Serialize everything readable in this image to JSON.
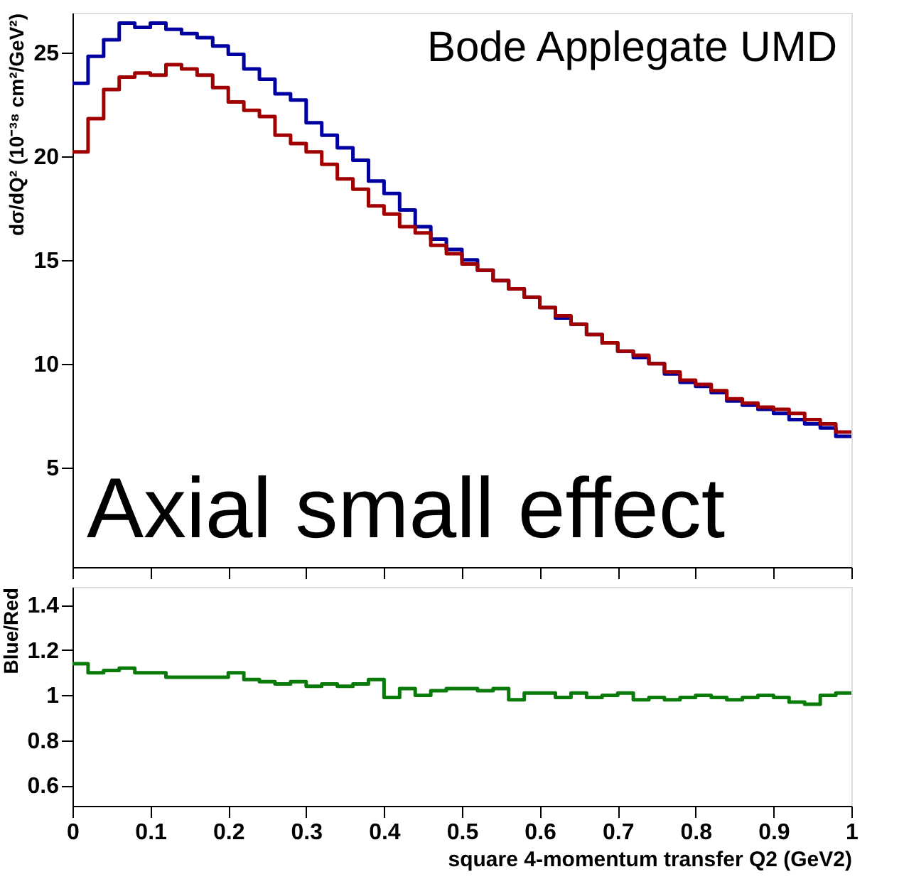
{
  "chart_data": [
    {
      "type": "histogram",
      "ylabel": "dσ/dQ² (10⁻³⁸ cm²/GeV²)",
      "annotations": [
        "Bode Applegate UMD",
        "Axial small effect"
      ],
      "bins": [
        0,
        0.02,
        0.04,
        0.06,
        0.08,
        0.1,
        0.12,
        0.14,
        0.16,
        0.18,
        0.2,
        0.22,
        0.24,
        0.26,
        0.28,
        0.3,
        0.32,
        0.34,
        0.36,
        0.38,
        0.4,
        0.42,
        0.44,
        0.46,
        0.48,
        0.5,
        0.52,
        0.54,
        0.56,
        0.58,
        0.6,
        0.62,
        0.64,
        0.66,
        0.68,
        0.7,
        0.72,
        0.74,
        0.76,
        0.78,
        0.8,
        0.82,
        0.84,
        0.86,
        0.88,
        0.9,
        0.92,
        0.94,
        0.96,
        0.98,
        1
      ],
      "series": [
        {
          "color": "#0000a0",
          "values": [
            23.5,
            24.8,
            25.6,
            26.4,
            26.2,
            26.4,
            26.1,
            25.9,
            25.7,
            25.3,
            24.9,
            24.2,
            23.7,
            23.0,
            22.7,
            21.6,
            21.0,
            20.4,
            19.8,
            18.8,
            18.2,
            17.4,
            16.6,
            16.0,
            15.5,
            15.0,
            14.5,
            14.0,
            13.6,
            13.2,
            12.7,
            12.2,
            11.9,
            11.4,
            11.0,
            10.6,
            10.3,
            10.0,
            9.5,
            9.1,
            8.9,
            8.6,
            8.2,
            8.0,
            7.8,
            7.6,
            7.3,
            7.1,
            6.9,
            6.5
          ]
        },
        {
          "color": "#a00000",
          "values": [
            20.2,
            21.8,
            23.2,
            23.8,
            24.0,
            23.9,
            24.4,
            24.2,
            23.9,
            23.3,
            22.6,
            22.2,
            21.9,
            21.0,
            20.6,
            20.2,
            19.6,
            18.9,
            18.4,
            17.6,
            17.2,
            16.6,
            16.3,
            15.7,
            15.3,
            14.8,
            14.5,
            14.0,
            13.6,
            13.2,
            12.7,
            12.3,
            11.9,
            11.4,
            11.0,
            10.6,
            10.4,
            10.0,
            9.6,
            9.2,
            9.0,
            8.7,
            8.3,
            8.1,
            7.9,
            7.8,
            7.6,
            7.3,
            7.1,
            6.7
          ]
        }
      ],
      "xlim": [
        0,
        1
      ],
      "ylim": [
        0.2,
        26.9
      ],
      "xticks": [
        0,
        0.1,
        0.2,
        0.3,
        0.4,
        0.5,
        0.6,
        0.7,
        0.8,
        0.9,
        1
      ],
      "yticks": [
        5,
        10,
        15,
        20,
        25
      ],
      "tick_labels": "y",
      "grid": false,
      "legend": false
    },
    {
      "type": "histogram",
      "xlabel": "square 4-momentum transfer Q2 (GeV2)",
      "ylabel": "Blue/Red",
      "bins": [
        0,
        0.02,
        0.04,
        0.06,
        0.08,
        0.1,
        0.12,
        0.14,
        0.16,
        0.18,
        0.2,
        0.22,
        0.24,
        0.26,
        0.28,
        0.3,
        0.32,
        0.34,
        0.36,
        0.38,
        0.4,
        0.42,
        0.44,
        0.46,
        0.48,
        0.5,
        0.52,
        0.54,
        0.56,
        0.58,
        0.6,
        0.62,
        0.64,
        0.66,
        0.68,
        0.7,
        0.72,
        0.74,
        0.76,
        0.78,
        0.8,
        0.82,
        0.84,
        0.86,
        0.88,
        0.9,
        0.92,
        0.94,
        0.96,
        0.98,
        1
      ],
      "series": [
        {
          "color": "#0a7a0a",
          "values": [
            1.14,
            1.1,
            1.11,
            1.12,
            1.1,
            1.1,
            1.08,
            1.08,
            1.08,
            1.08,
            1.1,
            1.07,
            1.06,
            1.05,
            1.06,
            1.04,
            1.05,
            1.04,
            1.05,
            1.07,
            0.99,
            1.03,
            1.0,
            1.02,
            1.03,
            1.03,
            1.02,
            1.03,
            0.98,
            1.01,
            1.01,
            0.99,
            1.01,
            0.99,
            1.0,
            1.01,
            0.98,
            0.99,
            0.98,
            0.99,
            1.0,
            0.99,
            0.98,
            0.99,
            1.0,
            0.99,
            0.97,
            0.96,
            1.0,
            1.01
          ]
        }
      ],
      "xlim": [
        0,
        1
      ],
      "ylim": [
        0.51,
        1.48
      ],
      "xticks": [
        0,
        0.1,
        0.2,
        0.3,
        0.4,
        0.5,
        0.6,
        0.7,
        0.8,
        0.9,
        1
      ],
      "yticks": [
        0.6,
        0.8,
        1,
        1.2,
        1.4
      ],
      "grid": false,
      "legend": false
    }
  ]
}
